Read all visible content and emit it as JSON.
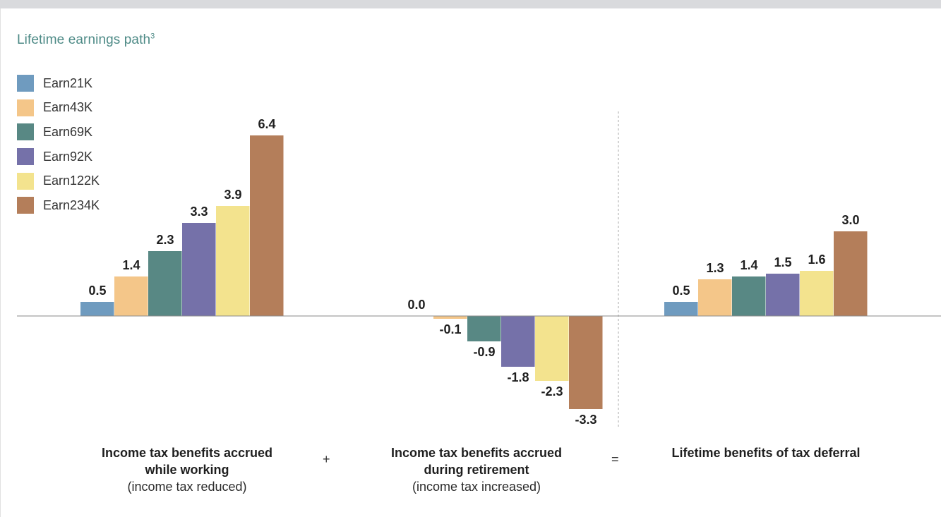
{
  "chart_data": {
    "type": "bar",
    "title": "Lifetime earnings path",
    "title_footnote": "3",
    "categories": [
      "Income tax benefits accrued while working",
      "Income tax benefits accrued during retirement",
      "Lifetime benefits of tax deferral"
    ],
    "series": [
      {
        "name": "Earn21K",
        "color": "#6f9bbf",
        "values": [
          0.5,
          0.0,
          0.5
        ]
      },
      {
        "name": "Earn43K",
        "color": "#f4c689",
        "values": [
          1.4,
          -0.1,
          1.3
        ]
      },
      {
        "name": "Earn69K",
        "color": "#588884",
        "values": [
          2.3,
          -0.9,
          1.4
        ]
      },
      {
        "name": "Earn92K",
        "color": "#7571a9",
        "values": [
          3.3,
          -1.8,
          1.5
        ]
      },
      {
        "name": "Earn122K",
        "color": "#f3e38e",
        "values": [
          3.9,
          -2.3,
          1.6
        ]
      },
      {
        "name": "Earn234K",
        "color": "#b47e5a",
        "values": [
          6.4,
          -3.3,
          3.0
        ]
      }
    ],
    "data_labels": [
      [
        "0.5",
        "1.4",
        "2.3",
        "3.3",
        "3.9",
        "6.4"
      ],
      [
        "0.0",
        "-0.1",
        "-0.9",
        "-1.8",
        "-2.3",
        "-3.3"
      ],
      [
        "0.5",
        "1.3",
        "1.4",
        "1.5",
        "1.6",
        "3.0"
      ]
    ],
    "ylim": [
      -3.8,
      7.0
    ],
    "legend_position": "top-left",
    "grid": false
  },
  "captions": [
    {
      "title_line1": "Income tax benefits accrued",
      "title_line2": "while working",
      "subtitle": "(income tax reduced)"
    },
    {
      "title_line1": "Income tax benefits accrued",
      "title_line2": "during retirement",
      "subtitle": "(income tax increased)"
    },
    {
      "title_line1": "Lifetime benefits of tax deferral",
      "title_line2": "",
      "subtitle": ""
    }
  ],
  "operators": [
    "+",
    "="
  ]
}
